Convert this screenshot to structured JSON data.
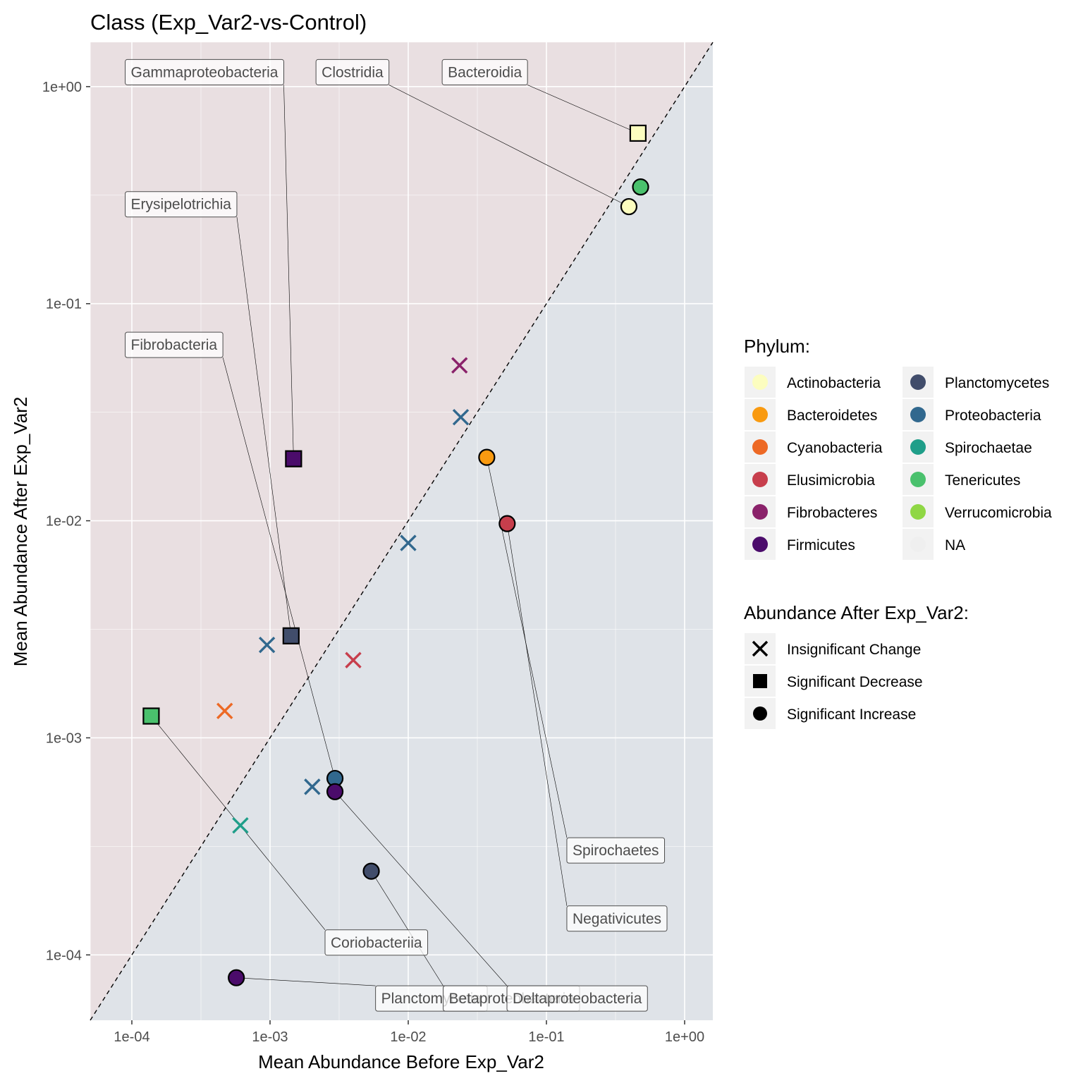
{
  "chart_data": {
    "type": "scatter",
    "title": "Class (Exp_Var2-vs-Control)",
    "xlabel": "Mean Abundance Before Exp_Var2",
    "ylabel": "Mean Abundance After Exp_Var2",
    "xscale": "log10",
    "yscale": "log10",
    "xlim": [
      5e-05,
      1.6
    ],
    "ylim": [
      5e-05,
      1.6
    ],
    "x_ticks": [
      {
        "value": 0.0001,
        "label": "1e-04"
      },
      {
        "value": 0.001,
        "label": "1e-03"
      },
      {
        "value": 0.01,
        "label": "1e-02"
      },
      {
        "value": 0.1,
        "label": "1e-01"
      },
      {
        "value": 1,
        "label": "1e+00"
      }
    ],
    "y_ticks": [
      {
        "value": 0.0001,
        "label": "1e-04"
      },
      {
        "value": 0.001,
        "label": "1e-03"
      },
      {
        "value": 0.01,
        "label": "1e-02"
      },
      {
        "value": 0.1,
        "label": "1e-01"
      },
      {
        "value": 1,
        "label": "1e+00"
      }
    ],
    "reference_line": "y = x (dashed)",
    "background": {
      "above_diagonal": "#e9dfe1",
      "below_diagonal": "#dfe3e8"
    },
    "grid": true,
    "legend_position": "right",
    "phylum_colors": {
      "Actinobacteria": "#fcfdbf",
      "Bacteroidetes": "#f99a10",
      "Cyanobacteria": "#ed6925",
      "Elusimicrobia": "#c73e4c",
      "Fibrobacteres": "#8a226a",
      "Firmicutes": "#4b0c6b",
      "Planctomycetes": "#414d6b",
      "Proteobacteria": "#31688e",
      "Spirochaetae": "#1f9e89",
      "Tenericutes": "#4ac16d",
      "Verrucomicrobia": "#8fd744",
      "NA": "#efefef"
    },
    "points": [
      {
        "label": "Bacteroidia",
        "phylum": "Bacteroidetes",
        "x": 0.46,
        "y": 0.61,
        "status": "Significant Decrease",
        "fill": "#fcfdbf"
      },
      {
        "label": "",
        "phylum": "Tenericutes",
        "x": 0.48,
        "y": 0.345,
        "status": "Significant Increase",
        "fill": "#4ac16d"
      },
      {
        "label": "Clostridia",
        "phylum": "Firmicutes",
        "x": 0.395,
        "y": 0.28,
        "status": "Significant Increase",
        "fill": "#fcfdbf"
      },
      {
        "label": "",
        "phylum": "Fibrobacteres",
        "x": 0.0235,
        "y": 0.052,
        "status": "Insignificant Change",
        "fill": "#8a226a"
      },
      {
        "label": "",
        "phylum": "Proteobacteria",
        "x": 0.024,
        "y": 0.03,
        "status": "Insignificant Change",
        "fill": "#31688e"
      },
      {
        "label": "Gammaproteobacteria",
        "phylum": "Proteobacteria",
        "x": 0.00148,
        "y": 0.0193,
        "status": "Significant Decrease",
        "fill": "#4b0c6b"
      },
      {
        "label": "Spirochaetes",
        "phylum": "Spirochaetae",
        "x": 0.037,
        "y": 0.0196,
        "status": "Significant Increase",
        "fill": "#f99a10"
      },
      {
        "label": "Negativicutes",
        "phylum": "Firmicutes",
        "x": 0.052,
        "y": 0.0097,
        "status": "Significant Increase",
        "fill": "#c73e4c"
      },
      {
        "label": "",
        "phylum": "Proteobacteria",
        "x": 0.01,
        "y": 0.0079,
        "status": "Insignificant Change",
        "fill": "#31688e"
      },
      {
        "label": "Erysipelotrichia",
        "phylum": "Firmicutes",
        "x": 0.00142,
        "y": 0.00295,
        "status": "Significant Decrease",
        "fill": "#414d6b"
      },
      {
        "label": "",
        "phylum": "Proteobacteria",
        "x": 0.00095,
        "y": 0.00268,
        "status": "Insignificant Change",
        "fill": "#31688e"
      },
      {
        "label": "",
        "phylum": "Elusimicrobia",
        "x": 0.004,
        "y": 0.00228,
        "status": "Insignificant Change",
        "fill": "#c73e4c"
      },
      {
        "label": "Coriobacteriia",
        "phylum": "Actinobacteria",
        "x": 0.000138,
        "y": 0.00126,
        "status": "Significant Decrease",
        "fill": "#4ac16d"
      },
      {
        "label": "",
        "phylum": "Cyanobacteria",
        "x": 0.00047,
        "y": 0.00133,
        "status": "Insignificant Change",
        "fill": "#ed6925"
      },
      {
        "label": "Fibrobacteria",
        "phylum": "Fibrobacteres",
        "x": 0.00295,
        "y": 0.00065,
        "status": "Significant Increase",
        "fill": "#31688e"
      },
      {
        "label": "",
        "phylum": "Proteobacteria",
        "x": 0.00202,
        "y": 0.000595,
        "status": "Insignificant Change",
        "fill": "#31688e"
      },
      {
        "label": "Deltaproteobacteria",
        "phylum": "Proteobacteria",
        "x": 0.00295,
        "y": 0.000565,
        "status": "Significant Increase",
        "fill": "#4b0c6b"
      },
      {
        "label": "",
        "phylum": "Spirochaetae",
        "x": 0.00061,
        "y": 0.000395,
        "status": "Insignificant Change",
        "fill": "#1f9e89"
      },
      {
        "label": "Betaproteobacteria",
        "phylum": "Proteobacteria",
        "x": 0.0054,
        "y": 0.000243,
        "status": "Significant Increase",
        "fill": "#414d6b"
      },
      {
        "label": "Planctomycetia",
        "phylum": "Planctomycetes",
        "x": 0.00057,
        "y": 7.85e-05,
        "status": "Significant Increase",
        "fill": "#4b0c6b"
      }
    ],
    "label_boxes": [
      {
        "text": "Gammaproteobacteria",
        "point": 5,
        "lx": 8.95e-05,
        "ly": 1.165,
        "anchor": "left"
      },
      {
        "text": "Clostridia",
        "point": 2,
        "lx": 0.00215,
        "ly": 1.165,
        "anchor": "left"
      },
      {
        "text": "Bacteroidia",
        "point": 0,
        "lx": 0.0176,
        "ly": 1.165,
        "anchor": "left"
      },
      {
        "text": "Erysipelotrichia",
        "point": 9,
        "lx": 8.95e-05,
        "ly": 0.287,
        "anchor": "left"
      },
      {
        "text": "Fibrobacteria",
        "point": 14,
        "lx": 8.95e-05,
        "ly": 0.0646,
        "anchor": "left"
      },
      {
        "text": "Spirochaetes",
        "point": 6,
        "lx": 0.1405,
        "ly": 0.000303,
        "anchor": "left"
      },
      {
        "text": "Negativicutes",
        "point": 7,
        "lx": 0.1405,
        "ly": 0.000147,
        "anchor": "left"
      },
      {
        "text": "Coriobacteriia",
        "point": 12,
        "lx": 0.0025,
        "ly": 0.000114,
        "anchor": "left"
      },
      {
        "text": "Planctomycetia",
        "point": 19,
        "lx": 0.0058,
        "ly": 6.3e-05,
        "anchor": "left"
      },
      {
        "text": "Betaproteobacteria",
        "point": 18,
        "lx": 0.0179,
        "ly": 6.3e-05,
        "anchor": "left"
      },
      {
        "text": "Deltaproteobacteria",
        "point": 16,
        "lx": 0.0518,
        "ly": 6.3e-05,
        "anchor": "left"
      }
    ],
    "legend": {
      "phylum_title": "Phylum:",
      "phylum_items": [
        {
          "name": "Actinobacteria",
          "color": "#fcfdbf"
        },
        {
          "name": "Bacteroidetes",
          "color": "#f99a10"
        },
        {
          "name": "Cyanobacteria",
          "color": "#ed6925"
        },
        {
          "name": "Elusimicrobia",
          "color": "#c73e4c"
        },
        {
          "name": "Fibrobacteres",
          "color": "#8a226a"
        },
        {
          "name": "Firmicutes",
          "color": "#4b0c6b"
        },
        {
          "name": "Planctomycetes",
          "color": "#414d6b"
        },
        {
          "name": "Proteobacteria",
          "color": "#31688e"
        },
        {
          "name": "Spirochaetae",
          "color": "#1f9e89"
        },
        {
          "name": "Tenericutes",
          "color": "#4ac16d"
        },
        {
          "name": "Verrucomicrobia",
          "color": "#8fd744"
        },
        {
          "name": "NA",
          "color": "#efefef"
        }
      ],
      "shape_title": "Abundance After Exp_Var2:",
      "shape_items": [
        {
          "name": "Insignificant Change",
          "shape": "x-cross"
        },
        {
          "name": "Significant Decrease",
          "shape": "square"
        },
        {
          "name": "Significant Increase",
          "shape": "circle"
        }
      ]
    }
  }
}
